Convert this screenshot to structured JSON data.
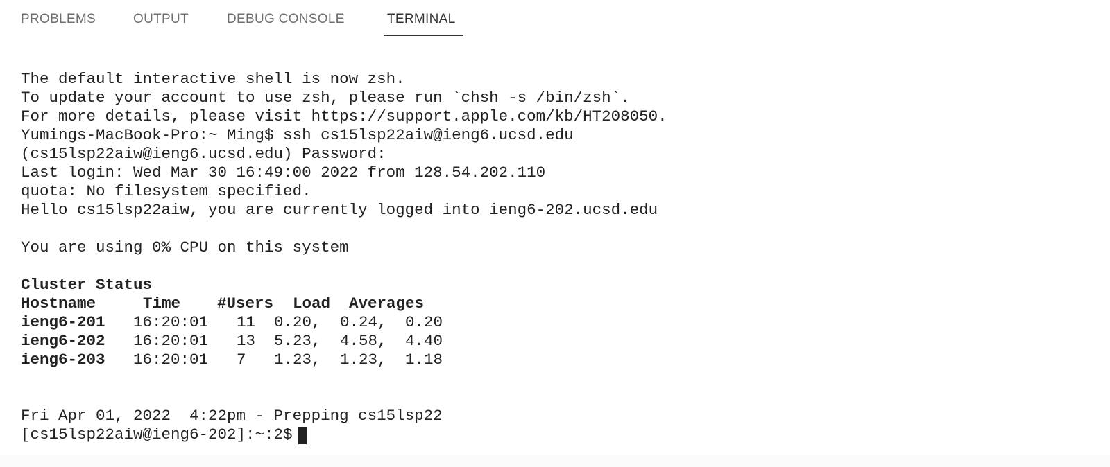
{
  "tabs": [
    "PROBLEMS",
    "OUTPUT",
    "DEBUG CONSOLE",
    "TERMINAL"
  ],
  "active_tab_index": 3,
  "terminal": {
    "lines": [
      "The default interactive shell is now zsh.",
      "To update your account to use zsh, please run `chsh -s /bin/zsh`.",
      "For more details, please visit https://support.apple.com/kb/HT208050.",
      "Yumings-MacBook-Pro:~ Ming$ ssh cs15lsp22aiw@ieng6.ucsd.edu",
      "(cs15lsp22aiw@ieng6.ucsd.edu) Password:",
      "Last login: Wed Mar 30 16:49:00 2022 from 128.54.202.110",
      "quota: No filesystem specified.",
      "Hello cs15lsp22aiw, you are currently logged into ieng6-202.ucsd.edu"
    ],
    "cpu": "You are using 0% CPU on this system",
    "cluster": {
      "title": "Cluster Status",
      "header": [
        "Hostname",
        "Time",
        "#Users",
        "Load",
        "Averages"
      ],
      "rows": [
        [
          "ieng6-201",
          "16:20:01",
          "11",
          "0.20,",
          "0.24,",
          "0.20"
        ],
        [
          "ieng6-202",
          "16:20:01",
          "13",
          "5.23,",
          "4.58,",
          "4.40"
        ],
        [
          "ieng6-203",
          "16:20:01",
          "7",
          "1.23,",
          "1.23,",
          "1.18"
        ]
      ]
    },
    "footer": "Fri Apr 01, 2022  4:22pm - Prepping cs15lsp22",
    "prompt": "[cs15lsp22aiw@ieng6-202]:~:2$"
  }
}
